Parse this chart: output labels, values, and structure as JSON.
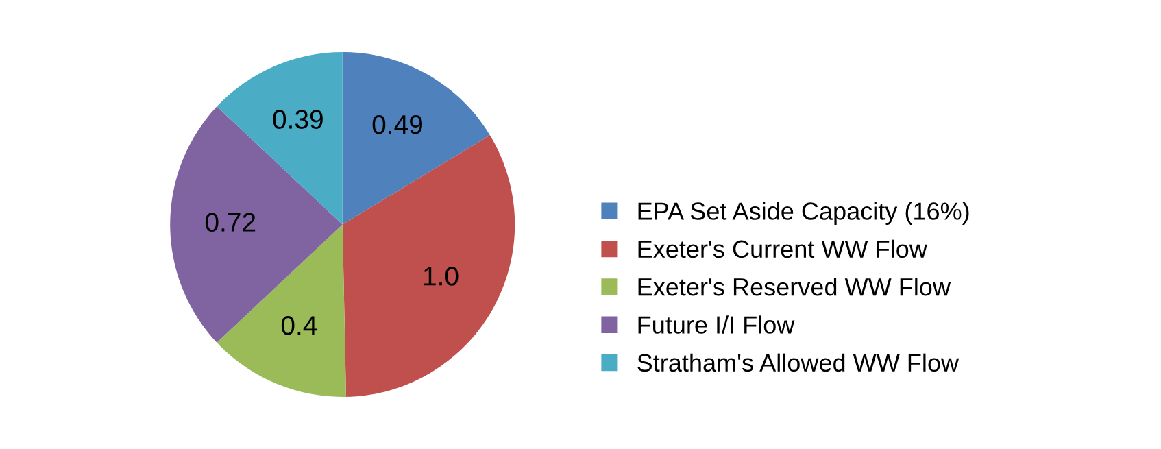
{
  "chart_data": {
    "type": "pie",
    "categories": [
      "EPA Set Aside Capacity (16%)",
      "Exeter's Current WW Flow",
      "Exeter's Reserved WW Flow",
      "Future I/I Flow",
      "Stratham's Allowed WW Flow"
    ],
    "values": [
      0.49,
      1.0,
      0.4,
      0.72,
      0.39
    ],
    "colors": [
      "#4f81bd",
      "#c0504d",
      "#9bbb59",
      "#8064a2",
      "#4bacc6"
    ],
    "value_labels": [
      "0.49",
      "1.0",
      "0.4",
      "0.72",
      "0.39"
    ],
    "legend": "right"
  }
}
